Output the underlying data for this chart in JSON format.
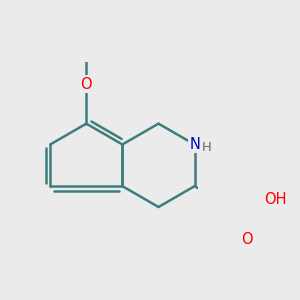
{
  "background_color": "#ebebeb",
  "bond_color": "#3d7d7d",
  "bond_width": 1.8,
  "atom_colors": {
    "O": "#ff0000",
    "N": "#0000cc",
    "C": "#3d7d7d"
  },
  "font_size": 10.5,
  "figsize": [
    3.0,
    3.0
  ],
  "dpi": 100
}
